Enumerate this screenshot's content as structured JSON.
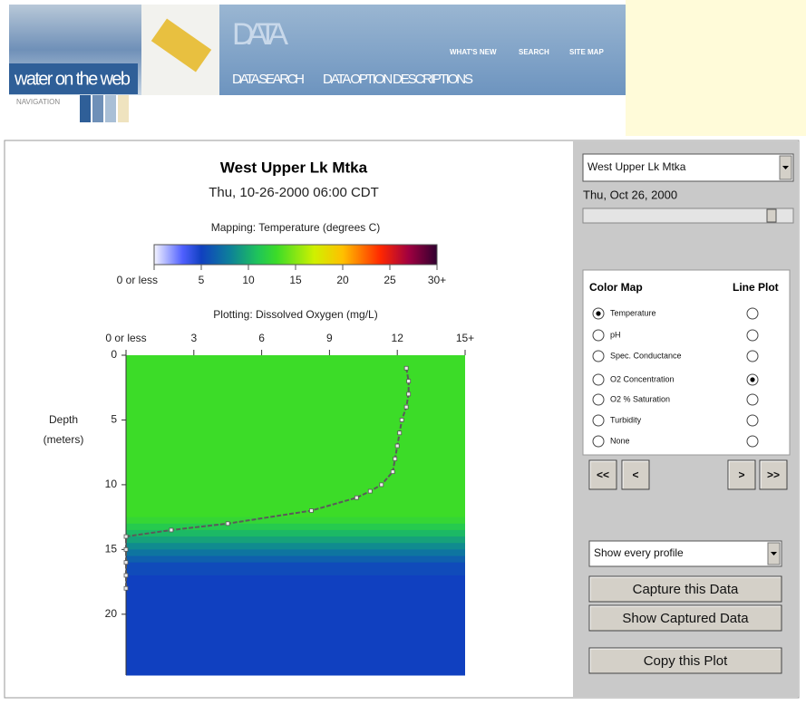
{
  "header": {
    "site_name": "water on the web",
    "navigation": "NAVIGATION",
    "section": "DATA",
    "top_links": [
      "WHAT'S NEW",
      "SEARCH",
      "SITE MAP"
    ],
    "nav_links": [
      "DATA SEARCH",
      "DATA OPTION DESCRIPTIONS"
    ]
  },
  "chart_data": {
    "type": "heatmap",
    "title": "West Upper Lk Mtka",
    "subtitle": "Thu, 10-26-2000 06:00 CDT",
    "colorbar_label": "Mapping: Temperature (degrees C)",
    "clim": [
      0,
      30
    ],
    "cticks": [
      {
        "value": 0,
        "label": "0 or less"
      },
      5,
      10,
      15,
      20,
      25,
      {
        "value": 30,
        "label": "30+"
      }
    ],
    "x_label": "Plotting: Dissolved Oxygen (mg/L)",
    "xlim": [
      0,
      15
    ],
    "xticks": [
      {
        "value": 0,
        "label": "0 or less"
      },
      3,
      6,
      9,
      12,
      {
        "value": 15,
        "label": "15+"
      }
    ],
    "y_label": [
      "Depth",
      "(meters)"
    ],
    "ylim": [
      0,
      24.7
    ],
    "yticks": [
      0,
      5,
      10,
      15,
      20
    ],
    "temperature": {
      "depths": [
        0,
        12,
        12.5,
        13,
        13.5,
        14,
        14.5,
        15,
        15.5,
        16,
        17
      ],
      "values": [
        13,
        13,
        12.5,
        11.5,
        10.5,
        9.5,
        8.5,
        7.5,
        6.5,
        5.5,
        5
      ]
    },
    "series": [
      {
        "color": "#5a5a5a",
        "depths": [
          1,
          2,
          3,
          4,
          5,
          6,
          7,
          8,
          9,
          10,
          10.5,
          11,
          12,
          13,
          13.5,
          14,
          15,
          16,
          17,
          18
        ],
        "values": [
          12.4,
          12.5,
          12.5,
          12.4,
          12.2,
          12.1,
          12.0,
          11.9,
          11.8,
          11.3,
          10.8,
          10.2,
          8.2,
          4.5,
          2.0,
          0,
          0,
          0,
          0,
          0
        ]
      }
    ]
  },
  "controls": {
    "lake": "West Upper Lk Mtka",
    "date": "Thu, Oct 26, 2000",
    "options_header": [
      "Color Map",
      "Line Plot"
    ],
    "options": [
      {
        "label": "Temperature",
        "color_map": true,
        "line_plot": false
      },
      {
        "label": "pH",
        "color_map": false,
        "line_plot": false
      },
      {
        "label": "Spec. Conductance",
        "color_map": false,
        "line_plot": false
      },
      {
        "label": "O2 Concentration",
        "color_map": false,
        "line_plot": true
      },
      {
        "label": "O2 % Saturation",
        "color_map": false,
        "line_plot": false
      },
      {
        "label": "Turbidity",
        "color_map": false,
        "line_plot": false
      },
      {
        "label": "None",
        "color_map": false,
        "line_plot": false
      }
    ],
    "nav_buttons": [
      "<<",
      "<",
      ">",
      ">>"
    ],
    "profile_select": "Show every profile",
    "buttons": [
      "Capture this Data",
      "Show Captured Data",
      "Copy this Plot"
    ]
  }
}
